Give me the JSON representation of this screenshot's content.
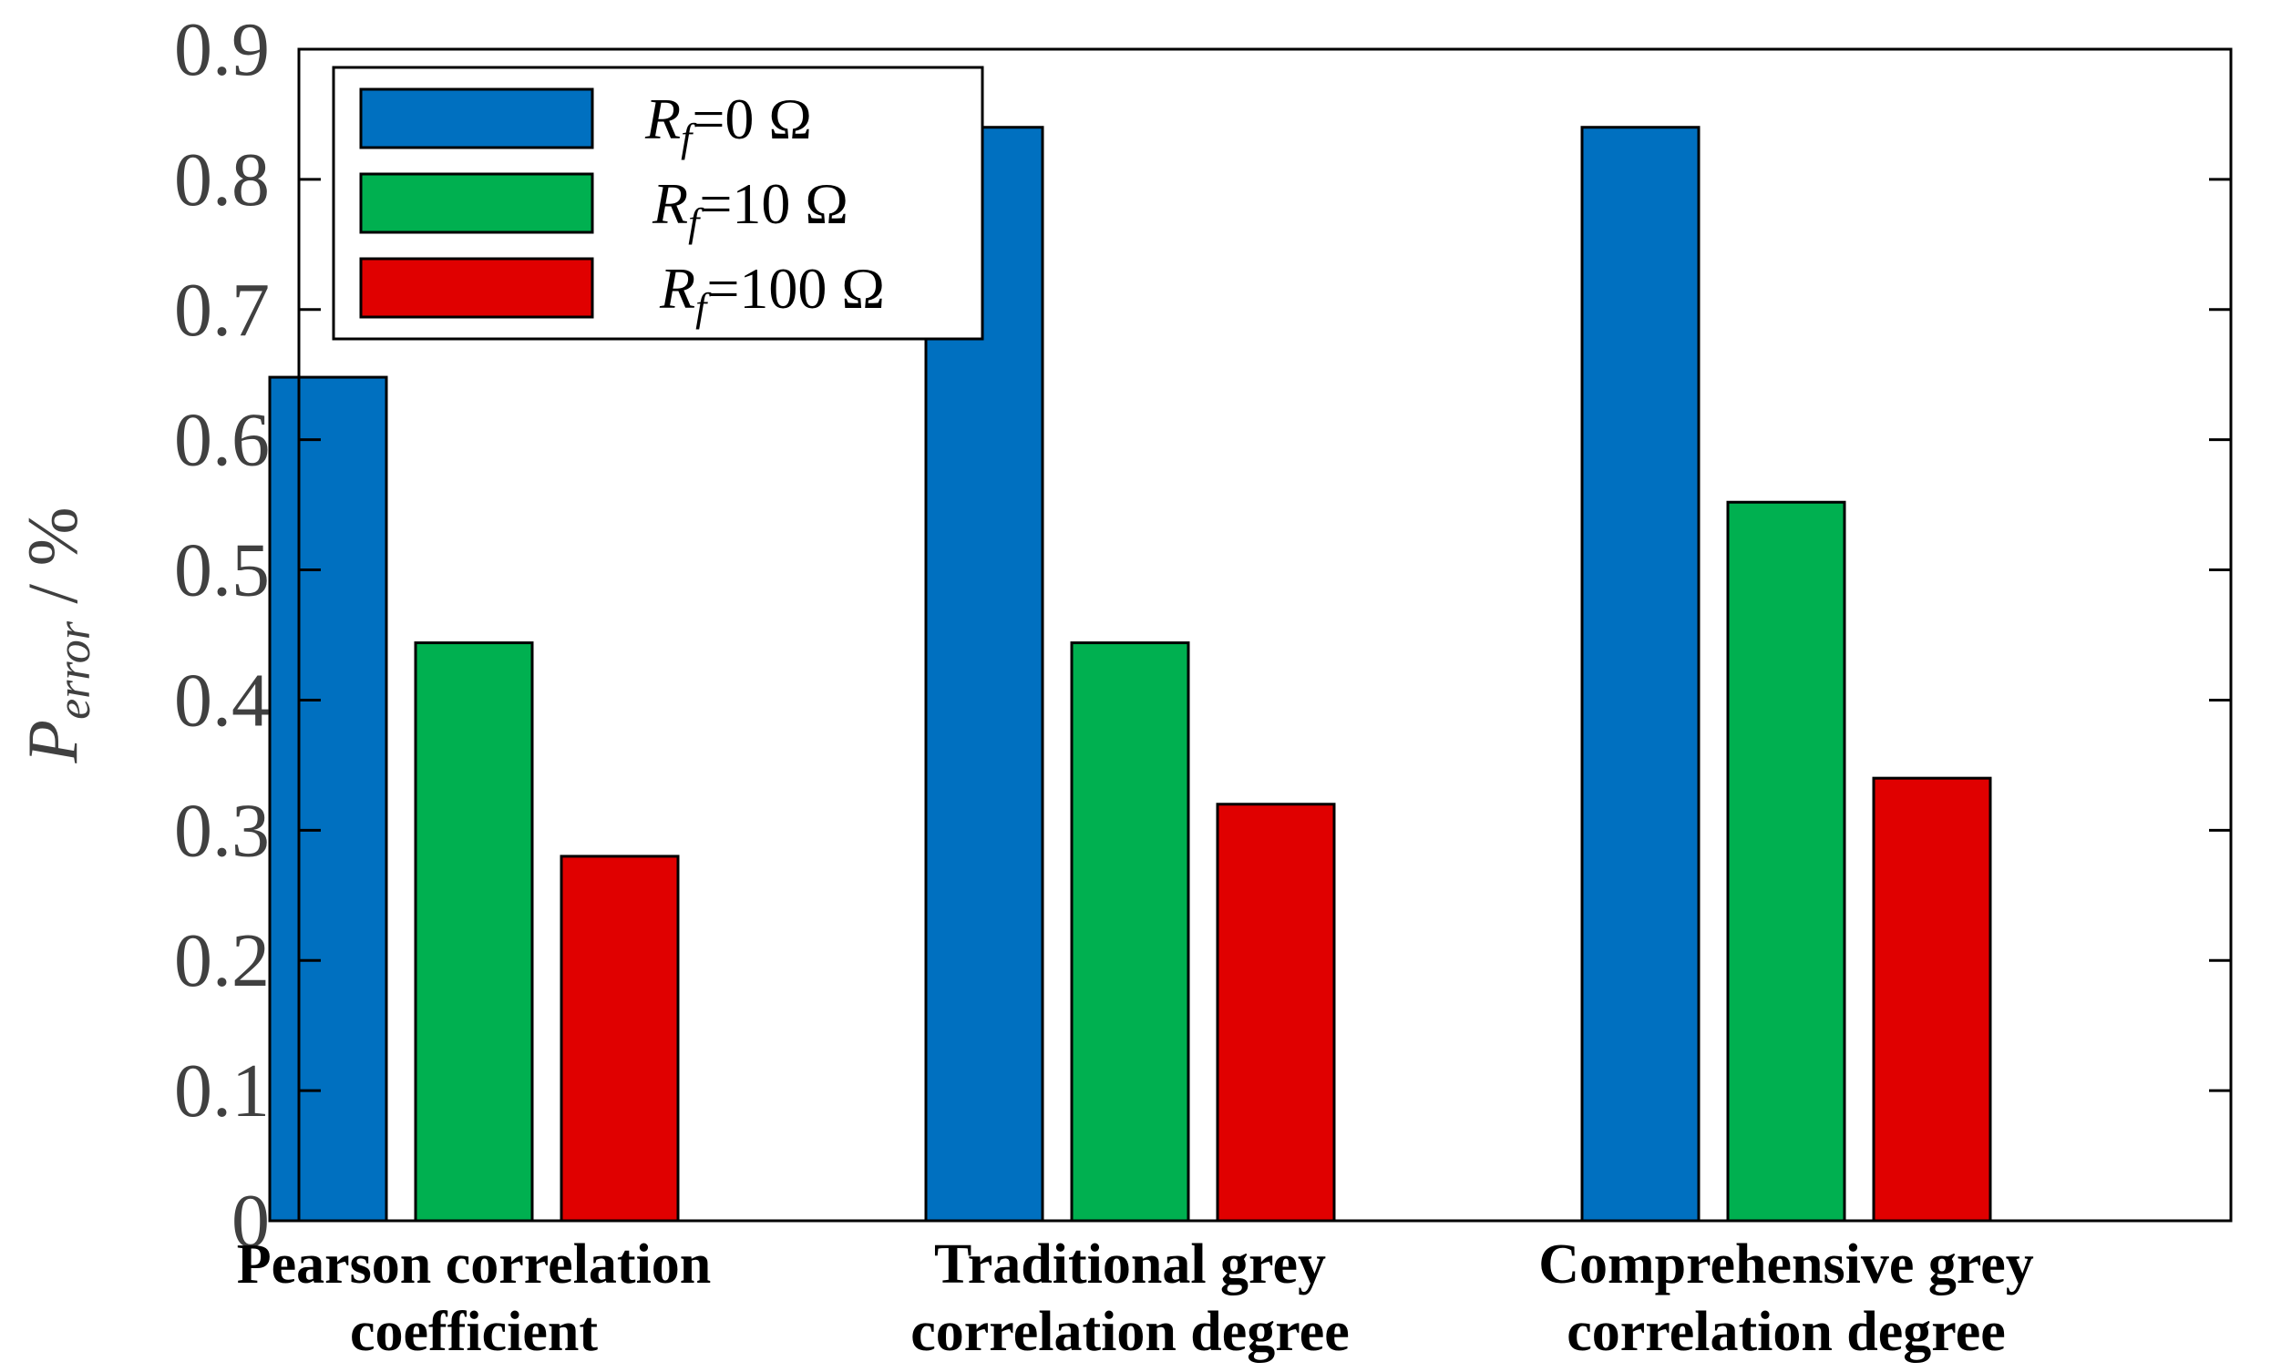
{
  "chart_data": {
    "type": "bar",
    "title": "",
    "xlabel": "",
    "ylabel": "P_error / %",
    "ylabel_parts": {
      "symbol": "P",
      "subscript": "error",
      "unit": " / %"
    },
    "categories": [
      [
        "Pearson correlation",
        "coefficient"
      ],
      [
        "Traditional grey",
        "correlation degree"
      ],
      [
        "Comprehensive grey",
        "correlation degree"
      ]
    ],
    "series": [
      {
        "name": "Rf=0 Ω",
        "symbol": "R",
        "subscript": "f",
        "value_label": "=0 Ω",
        "color": "#0070C0",
        "values": [
          0.648,
          0.84,
          0.84
        ]
      },
      {
        "name": "Rf=10 Ω",
        "symbol": "R",
        "subscript": "f",
        "value_label": "=10 Ω",
        "color": "#00B050",
        "values": [
          0.444,
          0.444,
          0.552
        ]
      },
      {
        "name": "Rf=100 Ω",
        "symbol": "R",
        "subscript": "f",
        "value_label": "=100 Ω",
        "color": "#E00000",
        "values": [
          0.28,
          0.32,
          0.34
        ]
      }
    ],
    "ylim": [
      0,
      0.9
    ],
    "yticks": [
      0,
      0.1,
      0.2,
      0.3,
      0.4,
      0.5,
      0.6,
      0.7,
      0.8,
      0.9
    ],
    "ytick_labels": [
      "0",
      "0.1",
      "0.2",
      "0.3",
      "0.4",
      "0.5",
      "0.6",
      "0.7",
      "0.8",
      "0.9"
    ],
    "grid": false,
    "legend_position": "top-left"
  }
}
